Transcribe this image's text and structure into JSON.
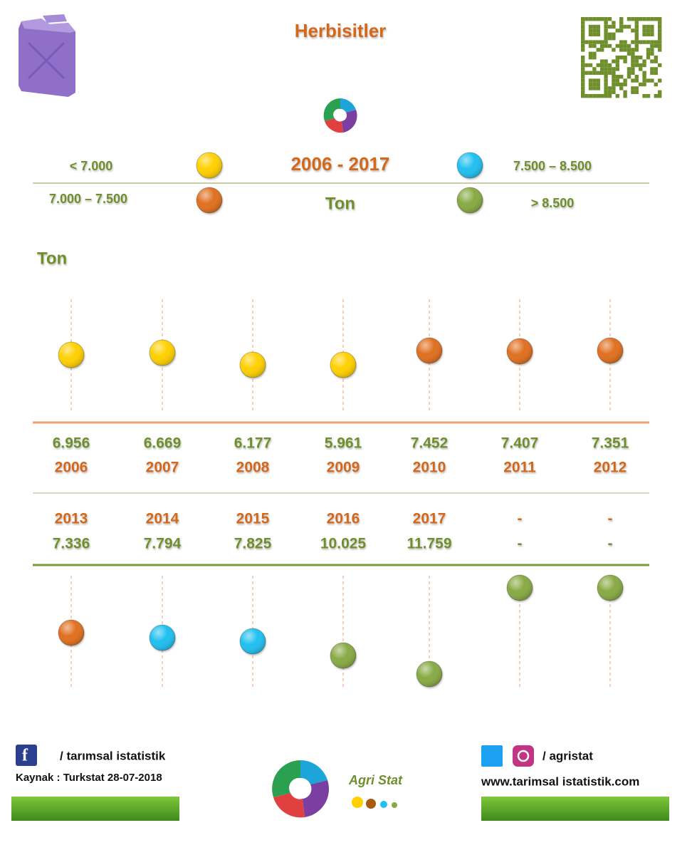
{
  "header": {
    "title": "Herbisitler",
    "period": "2006 - 2017",
    "unit": "Ton"
  },
  "legend": [
    {
      "label": "< 7.000",
      "color": "#ffd000"
    },
    {
      "label": "7.000 – 7.500",
      "color": "#e07020"
    },
    {
      "label": "7.500 – 8.500",
      "color": "#20c0f0"
    },
    {
      "label": "> 8.500",
      "color": "#88aa44"
    }
  ],
  "axis_label": "Ton",
  "rows": [
    {
      "years": [
        "2006",
        "2007",
        "2008",
        "2009",
        "2010",
        "2011",
        "2012"
      ],
      "values": [
        "6.956",
        "6.669",
        "6.177",
        "5.961",
        "7.452",
        "7.407",
        "7.351"
      ],
      "colors": [
        "#ffd000",
        "#ffd000",
        "#ffd000",
        "#ffd000",
        "#e07020",
        "#e07020",
        "#e07020"
      ]
    },
    {
      "years": [
        "2013",
        "2014",
        "2015",
        "2016",
        "2017",
        "-",
        "-"
      ],
      "values": [
        "7.336",
        "7.794",
        "7.825",
        "10.025",
        "11.759",
        "-",
        "-"
      ],
      "colors": [
        "#e07020",
        "#20c0f0",
        "#20c0f0",
        "#88aa44",
        "#88aa44",
        "#88aa44",
        "#88aa44"
      ]
    }
  ],
  "footer": {
    "facebook": "/ tarımsal istatistik",
    "source": "Kaynak :  Turkstat   28-07-2018",
    "brand": "Agri Stat",
    "social": "/ agristat",
    "website": "www.tarimsal istatistik.com"
  }
}
